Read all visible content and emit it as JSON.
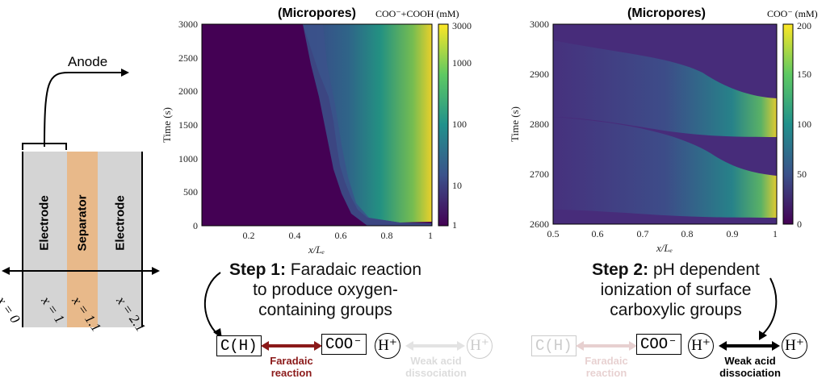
{
  "schematic": {
    "anode_label": "Anode",
    "layers": [
      "Electrode",
      "Separator",
      "Electrode"
    ],
    "positions": [
      "x = 0",
      "x = 1",
      "x = 1.1",
      "x = 2.1"
    ],
    "colors": {
      "electrode": "#d4d4d4",
      "separator": "#e8b98a"
    }
  },
  "plot1": {
    "title": "(Micropores)",
    "colorbar_label": "COO⁻+COOH (mM)",
    "ylabel": "Time (s)",
    "xlabel": "x/Lₑ",
    "yticks": [
      "3000",
      "2500",
      "2000",
      "1500",
      "1000",
      "500",
      "0"
    ],
    "xticks": [
      "0.2",
      "0.4",
      "0.6",
      "0.8",
      "1"
    ],
    "cbticks": [
      "3000",
      "1000",
      "100",
      "10",
      "1"
    ]
  },
  "plot2": {
    "title": "(Micropores)",
    "colorbar_label": "COO⁻ (mM)",
    "ylabel": "Time (s)",
    "xlabel": "x/Lₑ",
    "yticks": [
      "3000",
      "2900",
      "2800",
      "2700",
      "2600"
    ],
    "xticks": [
      "0.5",
      "0.6",
      "0.7",
      "0.8",
      "0.9",
      "1"
    ],
    "cbticks": [
      "200",
      "150",
      "100",
      "50",
      "0"
    ]
  },
  "step1": {
    "bold": "Step 1:",
    "text_line1": " Faradaic reaction",
    "text_line2": "to produce oxygen-",
    "text_line3": "containing groups"
  },
  "step2": {
    "bold": "Step 2:",
    "text_line1": " pH dependent",
    "text_line2": "ionization of surface",
    "text_line3": "carboxylic groups"
  },
  "scheme": {
    "ch": "C(H)",
    "coo": "COO⁻",
    "h": "H⁺",
    "faradaic": "Faradaic reaction",
    "weak_acid": "Weak acid dissociation",
    "faradaic_color": "#8b1a1a"
  }
}
